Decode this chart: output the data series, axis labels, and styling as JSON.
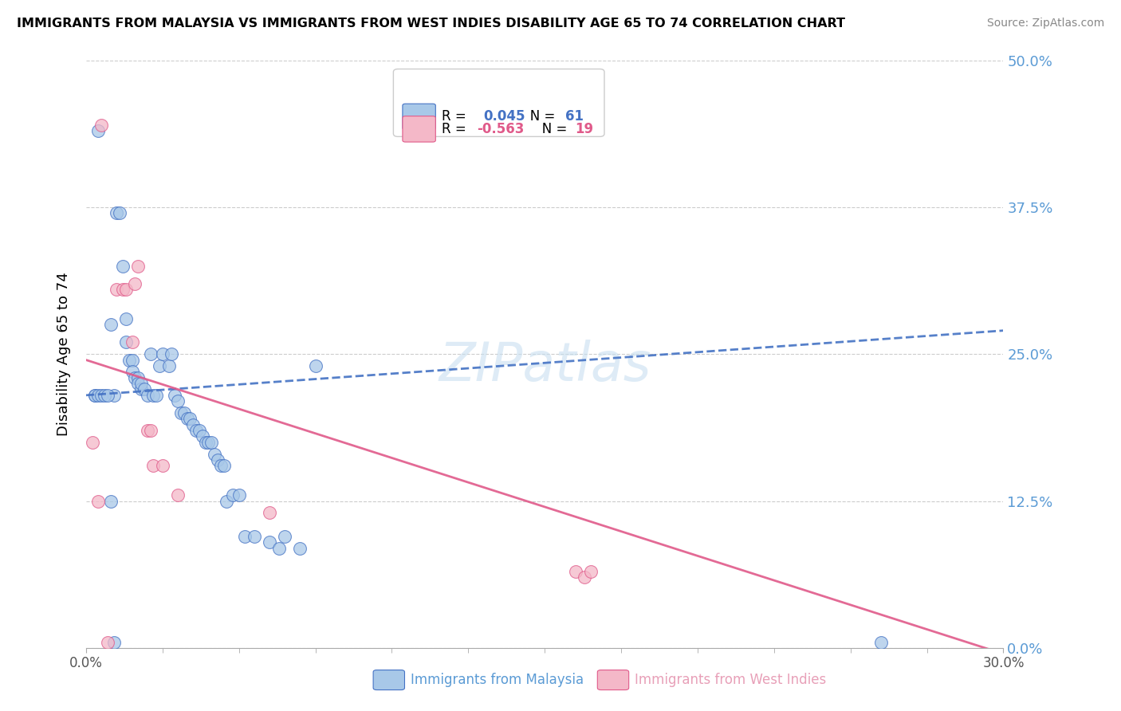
{
  "title": "IMMIGRANTS FROM MALAYSIA VS IMMIGRANTS FROM WEST INDIES DISABILITY AGE 65 TO 74 CORRELATION CHART",
  "source": "Source: ZipAtlas.com",
  "ylabel_label": "Disability Age 65 to 74",
  "xlim": [
    0.0,
    0.3
  ],
  "ylim": [
    0.0,
    0.5
  ],
  "xtick_vals": [
    0.0,
    0.3
  ],
  "xtick_labels": [
    "0.0%",
    "30.0%"
  ],
  "xtick_minor_vals": [
    0.025,
    0.05,
    0.075,
    0.1,
    0.125,
    0.15,
    0.175,
    0.2,
    0.225,
    0.25,
    0.275
  ],
  "ytick_vals": [
    0.0,
    0.125,
    0.25,
    0.375,
    0.5
  ],
  "ytick_labels": [
    "0.0%",
    "12.5%",
    "25.0%",
    "37.5%",
    "50.0%"
  ],
  "legend_label1": "Immigrants from Malaysia",
  "legend_label2": "Immigrants from West Indies",
  "r1": 0.045,
  "n1": 61,
  "r2": -0.563,
  "n2": 19,
  "color_blue": "#a8c8e8",
  "color_pink": "#f4b8c8",
  "color_blue_line": "#4472c4",
  "color_pink_line": "#e05a8a",
  "watermark": "ZIPatlas",
  "blue_scatter_x": [
    0.004,
    0.008,
    0.009,
    0.01,
    0.011,
    0.012,
    0.013,
    0.013,
    0.014,
    0.015,
    0.015,
    0.016,
    0.017,
    0.017,
    0.018,
    0.018,
    0.019,
    0.02,
    0.021,
    0.022,
    0.023,
    0.024,
    0.025,
    0.027,
    0.028,
    0.029,
    0.03,
    0.031,
    0.032,
    0.033,
    0.034,
    0.035,
    0.036,
    0.037,
    0.038,
    0.039,
    0.04,
    0.041,
    0.042,
    0.043,
    0.044,
    0.045,
    0.046,
    0.048,
    0.05,
    0.052,
    0.055,
    0.06,
    0.063,
    0.065,
    0.07,
    0.075,
    0.003,
    0.003,
    0.004,
    0.005,
    0.006,
    0.007,
    0.008,
    0.009,
    0.26
  ],
  "blue_scatter_y": [
    0.44,
    0.275,
    0.215,
    0.37,
    0.37,
    0.325,
    0.28,
    0.26,
    0.245,
    0.245,
    0.235,
    0.23,
    0.23,
    0.225,
    0.22,
    0.225,
    0.22,
    0.215,
    0.25,
    0.215,
    0.215,
    0.24,
    0.25,
    0.24,
    0.25,
    0.215,
    0.21,
    0.2,
    0.2,
    0.195,
    0.195,
    0.19,
    0.185,
    0.185,
    0.18,
    0.175,
    0.175,
    0.175,
    0.165,
    0.16,
    0.155,
    0.155,
    0.125,
    0.13,
    0.13,
    0.095,
    0.095,
    0.09,
    0.085,
    0.095,
    0.085,
    0.24,
    0.215,
    0.215,
    0.215,
    0.215,
    0.215,
    0.215,
    0.125,
    0.005,
    0.005
  ],
  "pink_scatter_x": [
    0.005,
    0.01,
    0.012,
    0.013,
    0.015,
    0.016,
    0.017,
    0.02,
    0.021,
    0.022,
    0.025,
    0.03,
    0.06,
    0.16,
    0.163,
    0.165,
    0.002,
    0.004,
    0.007
  ],
  "pink_scatter_y": [
    0.445,
    0.305,
    0.305,
    0.305,
    0.26,
    0.31,
    0.325,
    0.185,
    0.185,
    0.155,
    0.155,
    0.13,
    0.115,
    0.065,
    0.06,
    0.065,
    0.175,
    0.125,
    0.005
  ],
  "blue_line_x0": 0.0,
  "blue_line_x1": 0.3,
  "blue_line_y0": 0.215,
  "blue_line_y1": 0.27,
  "pink_line_x0": 0.0,
  "pink_line_x1": 0.3,
  "pink_line_y0": 0.245,
  "pink_line_y1": -0.005
}
